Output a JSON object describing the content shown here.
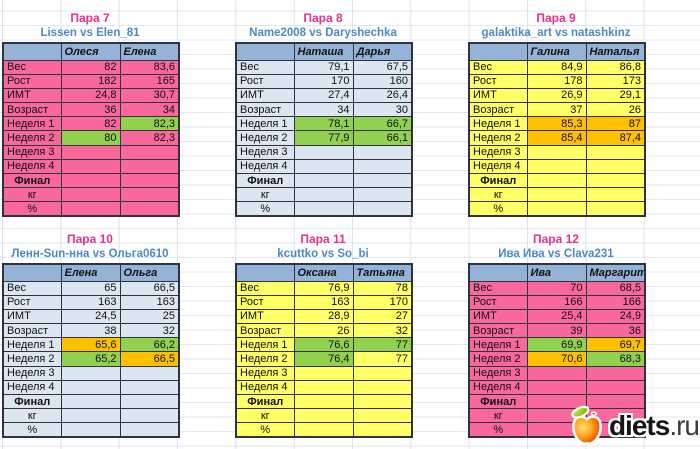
{
  "tables": [
    {
      "title": "Пара 7",
      "subtitle": "Lissen vs Elen_81",
      "theme": "pink",
      "players": [
        "Олеся",
        "Елена"
      ],
      "rows": [
        {
          "label": "Вес",
          "style": "left",
          "values": [
            "82",
            "83,6"
          ],
          "highlights": [
            null,
            null
          ]
        },
        {
          "label": "Рост",
          "style": "left",
          "values": [
            "182",
            "165"
          ],
          "highlights": [
            null,
            null
          ]
        },
        {
          "label": "ИМТ",
          "style": "left",
          "values": [
            "24,8",
            "30,7"
          ],
          "highlights": [
            null,
            null
          ]
        },
        {
          "label": "Возраст",
          "style": "left",
          "values": [
            "36",
            "34"
          ],
          "highlights": [
            null,
            null
          ]
        },
        {
          "label": "Неделя 1",
          "style": "left",
          "values": [
            "82",
            "82,3"
          ],
          "highlights": [
            null,
            "green"
          ]
        },
        {
          "label": "Неделя 2",
          "style": "left",
          "values": [
            "80",
            "82,3"
          ],
          "highlights": [
            "green",
            null
          ]
        },
        {
          "label": "Неделя 3",
          "style": "left",
          "values": [
            "",
            ""
          ],
          "highlights": [
            null,
            null
          ]
        },
        {
          "label": "Неделя 4",
          "style": "left",
          "values": [
            "",
            ""
          ],
          "highlights": [
            null,
            null
          ]
        },
        {
          "label": "Финал",
          "style": "bold-center",
          "values": [
            "",
            ""
          ],
          "highlights": [
            null,
            null
          ]
        },
        {
          "label": "кг",
          "style": "center",
          "values": [
            "",
            ""
          ],
          "highlights": [
            null,
            null
          ]
        },
        {
          "label": "%",
          "style": "center",
          "values": [
            "",
            ""
          ],
          "highlights": [
            null,
            null
          ]
        }
      ]
    },
    {
      "title": "Пара 8",
      "subtitle": "Name2008 vs Daryshechka",
      "theme": "blue",
      "players": [
        "Наташа",
        "Дарья"
      ],
      "rows": [
        {
          "label": "Вес",
          "style": "left",
          "values": [
            "79,1",
            "67,5"
          ],
          "highlights": [
            null,
            null
          ]
        },
        {
          "label": "Рост",
          "style": "left",
          "values": [
            "170",
            "160"
          ],
          "highlights": [
            null,
            null
          ]
        },
        {
          "label": "ИМТ",
          "style": "left",
          "values": [
            "27,4",
            "26,4"
          ],
          "highlights": [
            null,
            null
          ]
        },
        {
          "label": "Возраст",
          "style": "left",
          "values": [
            "34",
            "30"
          ],
          "highlights": [
            null,
            null
          ]
        },
        {
          "label": "Неделя 1",
          "style": "left",
          "values": [
            "78,1",
            "66,7"
          ],
          "highlights": [
            "green",
            "green"
          ]
        },
        {
          "label": "Неделя 2",
          "style": "left",
          "values": [
            "77,9",
            "66,1"
          ],
          "highlights": [
            "green",
            "green"
          ]
        },
        {
          "label": "Неделя 3",
          "style": "left",
          "values": [
            "",
            ""
          ],
          "highlights": [
            null,
            null
          ]
        },
        {
          "label": "Неделя 4",
          "style": "left",
          "values": [
            "",
            ""
          ],
          "highlights": [
            null,
            null
          ]
        },
        {
          "label": "Финал",
          "style": "bold-center",
          "values": [
            "",
            ""
          ],
          "highlights": [
            null,
            null
          ]
        },
        {
          "label": "кг",
          "style": "center",
          "values": [
            "",
            ""
          ],
          "highlights": [
            null,
            null
          ]
        },
        {
          "label": "%",
          "style": "center",
          "values": [
            "",
            ""
          ],
          "highlights": [
            null,
            null
          ]
        }
      ]
    },
    {
      "title": "Пара 9",
      "subtitle": "galaktika_art vs natashkinz",
      "theme": "yellow",
      "players": [
        "Галина",
        "Наталья"
      ],
      "rows": [
        {
          "label": "Вес",
          "style": "left",
          "values": [
            "84,9",
            "86,8"
          ],
          "highlights": [
            null,
            null
          ]
        },
        {
          "label": "Рост",
          "style": "left",
          "values": [
            "178",
            "173"
          ],
          "highlights": [
            null,
            null
          ]
        },
        {
          "label": "ИМТ",
          "style": "left",
          "values": [
            "26,9",
            "29,1"
          ],
          "highlights": [
            null,
            null
          ]
        },
        {
          "label": "Возраст",
          "style": "left",
          "values": [
            "37",
            "26"
          ],
          "highlights": [
            null,
            null
          ]
        },
        {
          "label": "Неделя 1",
          "style": "left",
          "values": [
            "85,3",
            "87"
          ],
          "highlights": [
            "orange",
            "orange"
          ]
        },
        {
          "label": "Неделя 2",
          "style": "left",
          "values": [
            "85,4",
            "87,4"
          ],
          "highlights": [
            "orange",
            "orange"
          ]
        },
        {
          "label": "Неделя 3",
          "style": "left",
          "values": [
            "",
            ""
          ],
          "highlights": [
            null,
            null
          ]
        },
        {
          "label": "Неделя 4",
          "style": "left",
          "values": [
            "",
            ""
          ],
          "highlights": [
            null,
            null
          ]
        },
        {
          "label": "Финал",
          "style": "bold-center",
          "values": [
            "",
            ""
          ],
          "highlights": [
            null,
            null
          ]
        },
        {
          "label": "кг",
          "style": "center",
          "values": [
            "",
            ""
          ],
          "highlights": [
            null,
            null
          ]
        },
        {
          "label": "%",
          "style": "center",
          "values": [
            "",
            ""
          ],
          "highlights": [
            null,
            null
          ]
        }
      ]
    },
    {
      "title": "Пара 10",
      "subtitle": "Ленн-Sun-нна vs Ольга0610",
      "theme": "blue",
      "players": [
        "Елена",
        "Ольга"
      ],
      "rows": [
        {
          "label": "Вес",
          "style": "left",
          "values": [
            "65",
            "66,5"
          ],
          "highlights": [
            null,
            null
          ]
        },
        {
          "label": "Рост",
          "style": "left",
          "values": [
            "163",
            "163"
          ],
          "highlights": [
            null,
            null
          ]
        },
        {
          "label": "ИМТ",
          "style": "left",
          "values": [
            "24,5",
            "25"
          ],
          "highlights": [
            null,
            null
          ]
        },
        {
          "label": "Возраст",
          "style": "left",
          "values": [
            "38",
            "32"
          ],
          "highlights": [
            null,
            null
          ]
        },
        {
          "label": "Неделя 1",
          "style": "left",
          "values": [
            "65,6",
            "66,2"
          ],
          "highlights": [
            "orange",
            "green"
          ]
        },
        {
          "label": "Неделя 2",
          "style": "left",
          "values": [
            "65,2",
            "66,5"
          ],
          "highlights": [
            "green",
            "orange"
          ]
        },
        {
          "label": "Неделя 3",
          "style": "left",
          "values": [
            "",
            ""
          ],
          "highlights": [
            null,
            null
          ]
        },
        {
          "label": "Неделя 4",
          "style": "left",
          "values": [
            "",
            ""
          ],
          "highlights": [
            null,
            null
          ]
        },
        {
          "label": "Финал",
          "style": "bold-center",
          "values": [
            "",
            ""
          ],
          "highlights": [
            null,
            null
          ]
        },
        {
          "label": "кг",
          "style": "center",
          "values": [
            "",
            ""
          ],
          "highlights": [
            null,
            null
          ]
        },
        {
          "label": "%",
          "style": "center",
          "values": [
            "",
            ""
          ],
          "highlights": [
            null,
            null
          ]
        }
      ]
    },
    {
      "title": "Пара 11",
      "subtitle": "kcuttko vs So_bi",
      "theme": "yellow",
      "players": [
        "Оксана",
        "Татьяна"
      ],
      "rows": [
        {
          "label": "Вес",
          "style": "left",
          "values": [
            "76,9",
            "78"
          ],
          "highlights": [
            null,
            null
          ]
        },
        {
          "label": "Рост",
          "style": "left",
          "values": [
            "163",
            "170"
          ],
          "highlights": [
            null,
            null
          ]
        },
        {
          "label": "ИМТ",
          "style": "left",
          "values": [
            "28,9",
            "27"
          ],
          "highlights": [
            null,
            null
          ]
        },
        {
          "label": "Возраст",
          "style": "left",
          "values": [
            "26",
            "32"
          ],
          "highlights": [
            null,
            null
          ]
        },
        {
          "label": "Неделя 1",
          "style": "left",
          "values": [
            "76,6",
            "77"
          ],
          "highlights": [
            "green",
            "green"
          ]
        },
        {
          "label": "Неделя 2",
          "style": "left",
          "values": [
            "76,4",
            "77"
          ],
          "highlights": [
            "green",
            null
          ]
        },
        {
          "label": "Неделя 3",
          "style": "left",
          "values": [
            "",
            ""
          ],
          "highlights": [
            null,
            null
          ]
        },
        {
          "label": "Неделя 4",
          "style": "left",
          "values": [
            "",
            ""
          ],
          "highlights": [
            null,
            null
          ]
        },
        {
          "label": "Финал",
          "style": "bold-center",
          "values": [
            "",
            ""
          ],
          "highlights": [
            null,
            null
          ]
        },
        {
          "label": "кг",
          "style": "center",
          "values": [
            "",
            ""
          ],
          "highlights": [
            null,
            null
          ]
        },
        {
          "label": "%",
          "style": "center",
          "values": [
            "",
            ""
          ],
          "highlights": [
            null,
            null
          ]
        }
      ]
    },
    {
      "title": "Пара 12",
      "subtitle": "Ива Ива vs Clava231",
      "theme": "pink",
      "players": [
        "Ива",
        "Маргарита"
      ],
      "rows": [
        {
          "label": "Вес",
          "style": "left",
          "values": [
            "70",
            "68,5"
          ],
          "highlights": [
            null,
            null
          ]
        },
        {
          "label": "Рост",
          "style": "left",
          "values": [
            "166",
            "166"
          ],
          "highlights": [
            null,
            null
          ]
        },
        {
          "label": "ИМТ",
          "style": "left",
          "values": [
            "25,4",
            "24,9"
          ],
          "highlights": [
            null,
            null
          ]
        },
        {
          "label": "Возраст",
          "style": "left",
          "values": [
            "39",
            "36"
          ],
          "highlights": [
            null,
            null
          ]
        },
        {
          "label": "Неделя 1",
          "style": "left",
          "values": [
            "69,9",
            "69,7"
          ],
          "highlights": [
            "green",
            "orange"
          ]
        },
        {
          "label": "Неделя 2",
          "style": "left",
          "values": [
            "70,6",
            "68,3"
          ],
          "highlights": [
            "orange",
            "green"
          ]
        },
        {
          "label": "Неделя 3",
          "style": "left",
          "values": [
            "",
            ""
          ],
          "highlights": [
            null,
            null
          ]
        },
        {
          "label": "Неделя 4",
          "style": "left",
          "values": [
            "",
            ""
          ],
          "highlights": [
            null,
            null
          ]
        },
        {
          "label": "Финал",
          "style": "bold-center",
          "values": [
            "",
            ""
          ],
          "highlights": [
            null,
            null
          ]
        },
        {
          "label": "кг",
          "style": "center",
          "values": [
            "",
            ""
          ],
          "highlights": [
            null,
            null
          ]
        },
        {
          "label": "%",
          "style": "center",
          "values": [
            "",
            ""
          ],
          "highlights": [
            null,
            null
          ]
        }
      ]
    }
  ],
  "logo": {
    "bold": "diets",
    "suffix": ".ru"
  },
  "colors": {
    "pink_body": "#f8689b",
    "blue_body": "#dce6f1",
    "yellow_body": "#ffff66",
    "header_blue": "#95b3d7",
    "green_highlight": "#92d050",
    "orange_highlight": "#ffc000",
    "title_pink": "#e7308c",
    "subtitle_blue": "#4e87c5",
    "cell_border": "#2f3240"
  }
}
